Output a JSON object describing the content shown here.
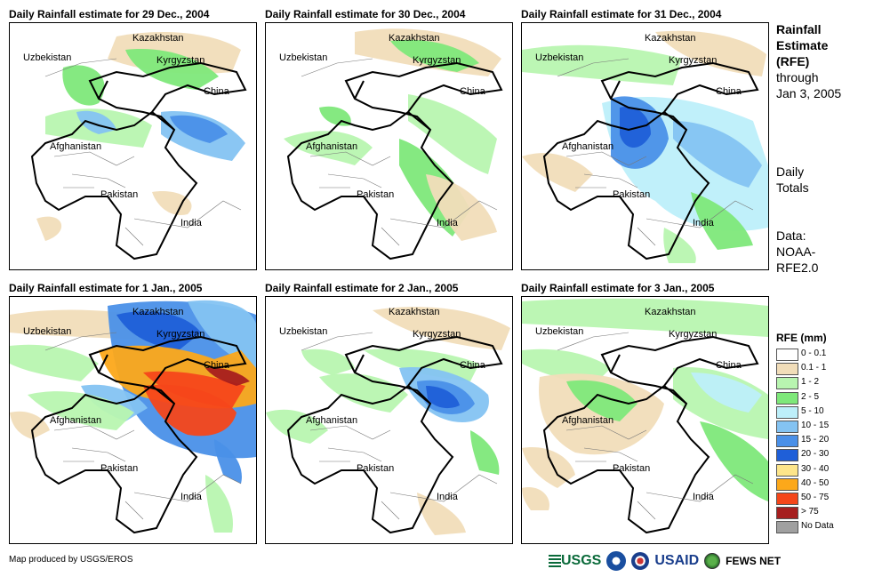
{
  "panels": [
    {
      "title": "Daily Rainfall estimate for 29 Dec., 2004"
    },
    {
      "title": "Daily Rainfall estimate for 30 Dec., 2004"
    },
    {
      "title": "Daily Rainfall estimate for 31 Dec., 2004"
    },
    {
      "title": "Daily Rainfall estimate for 1 Jan., 2005"
    },
    {
      "title": "Daily Rainfall estimate for 2 Jan., 2005"
    },
    {
      "title": "Daily Rainfall estimate for 3 Jan., 2005"
    }
  ],
  "place_labels": {
    "kazakhstan": "Kazakhstan",
    "uzbekistan": "Uzbekistan",
    "kyrgyzstan": "Kyrgyzstan",
    "china": "China",
    "afghanistan": "Afghanistan",
    "pakistan": "Pakistan",
    "india": "India"
  },
  "sidebar": {
    "title_line1": "Rainfall",
    "title_line2": "Estimate",
    "title_line3": "(RFE)",
    "through": "through",
    "date": "Jan 3, 2005",
    "totals_line1": "Daily",
    "totals_line2": "Totals",
    "data_line1": "Data:",
    "data_line2": "NOAA-",
    "data_line3": "RFE2.0"
  },
  "legend": {
    "title": "RFE (mm)",
    "items": [
      {
        "label": "0 - 0.1",
        "color": "#ffffff"
      },
      {
        "label": "0.1 - 1",
        "color": "#f1ddb9"
      },
      {
        "label": "1 - 2",
        "color": "#b8f5b0"
      },
      {
        "label": "2 - 5",
        "color": "#7ee87a"
      },
      {
        "label": "5 - 10",
        "color": "#bdeffa"
      },
      {
        "label": "10 - 15",
        "color": "#84c3f2"
      },
      {
        "label": "15 - 20",
        "color": "#4a90e8"
      },
      {
        "label": "20 - 30",
        "color": "#1f5fd8"
      },
      {
        "label": "30 - 40",
        "color": "#fde58a"
      },
      {
        "label": "40 - 50",
        "color": "#fca81a"
      },
      {
        "label": "50 - 75",
        "color": "#f5461a"
      },
      {
        "label": "> 75",
        "color": "#a61e1e"
      },
      {
        "label": "No Data",
        "color": "#a0a0a0"
      }
    ]
  },
  "credit": "Map produced by USGS/EROS",
  "logos": {
    "usgs": "USGS",
    "usaid": "USAID",
    "fews": "FEWS NET"
  }
}
